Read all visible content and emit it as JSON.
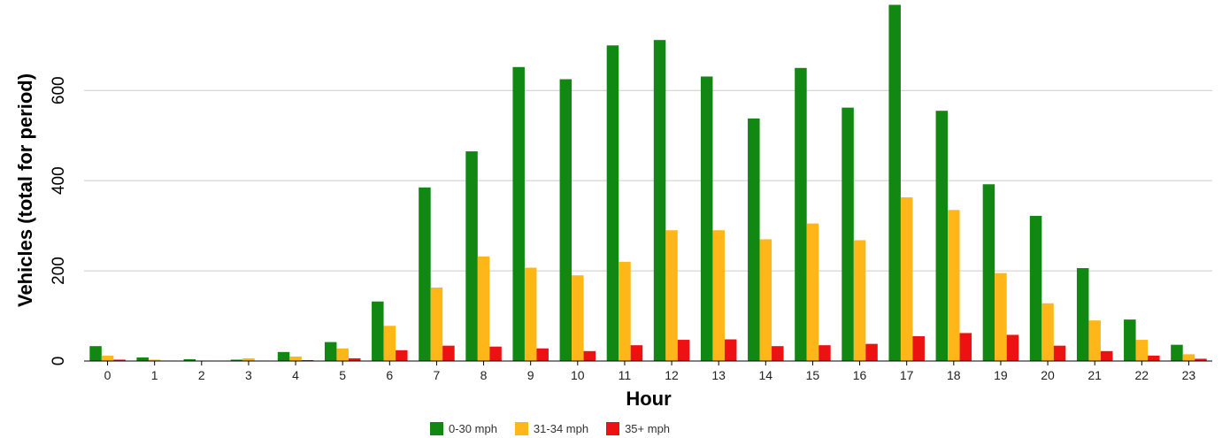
{
  "chart_data": {
    "type": "bar",
    "title": "",
    "xlabel": "Hour",
    "ylabel": "Vehicles (total for period)",
    "ylim": [
      0,
      785
    ],
    "yticks": [
      0,
      200,
      400,
      600
    ],
    "grid": true,
    "legend_position": "bottom",
    "categories": [
      "0",
      "1",
      "2",
      "3",
      "4",
      "5",
      "6",
      "7",
      "8",
      "9",
      "10",
      "11",
      "12",
      "13",
      "14",
      "15",
      "16",
      "17",
      "18",
      "19",
      "20",
      "21",
      "22",
      "23"
    ],
    "series": [
      {
        "name": "0-30 mph",
        "color": "#118811",
        "values": [
          33,
          8,
          4,
          3,
          20,
          42,
          132,
          385,
          465,
          652,
          625,
          700,
          712,
          631,
          538,
          650,
          562,
          790,
          555,
          392,
          322,
          206,
          92,
          36
        ]
      },
      {
        "name": "31-34 mph",
        "color": "#ffb619",
        "values": [
          12,
          3,
          1,
          6,
          10,
          28,
          78,
          163,
          232,
          207,
          190,
          220,
          290,
          290,
          270,
          305,
          268,
          363,
          335,
          195,
          128,
          90,
          47,
          15
        ]
      },
      {
        "name": "35+ mph",
        "color": "#ee1111",
        "values": [
          3,
          1,
          0,
          1,
          2,
          6,
          24,
          34,
          32,
          28,
          22,
          35,
          47,
          48,
          33,
          35,
          38,
          55,
          62,
          58,
          34,
          22,
          12,
          5
        ]
      }
    ]
  }
}
